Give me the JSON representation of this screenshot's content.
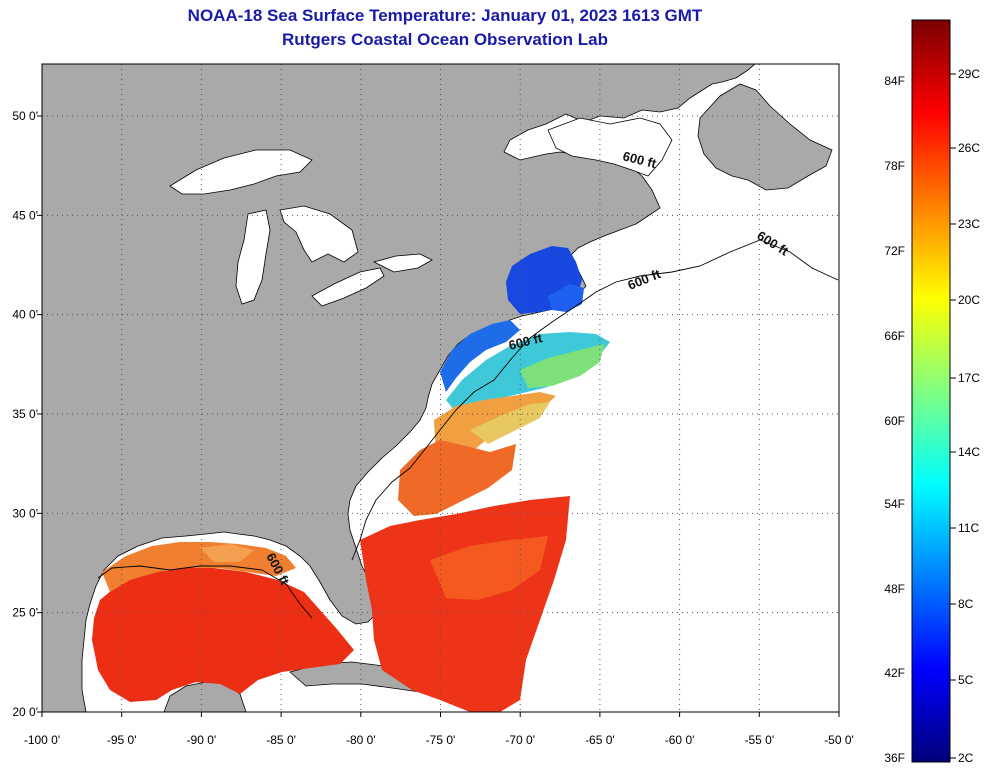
{
  "header": {
    "title": "NOAA-18 Sea Surface Temperature:  January 01, 2023 1613 GMT",
    "subtitle": "Rutgers Coastal Ocean Observation Lab"
  },
  "map": {
    "lon_range": [
      -100,
      -50
    ],
    "lat_range": [
      20,
      52
    ],
    "lon_ticks": [
      "-100 0'",
      "-95 0'",
      "-90 0'",
      "-85 0'",
      "-80 0'",
      "-75 0'",
      "-70 0'",
      "-65 0'",
      "-60 0'",
      "-55 0'",
      "-50 0'"
    ],
    "lat_ticks": [
      {
        "lat": 50,
        "label": "50 0'"
      },
      {
        "lat": 45,
        "label": "45 0'"
      },
      {
        "lat": 40,
        "label": "40 0'"
      },
      {
        "lat": 35,
        "label": "35 0'"
      },
      {
        "lat": 30,
        "label": "30 0'"
      },
      {
        "lat": 25,
        "label": "25 0'"
      },
      {
        "lat": 20,
        "label": "20 0'"
      }
    ],
    "isobath_labels": [
      "600 ft",
      "600 ft",
      "600 ft",
      "600 ft",
      "600 ft"
    ],
    "colors": {
      "land": "#a9a9a9",
      "nodata": "#ffffff",
      "coast": "#000000",
      "grid": "#555555"
    }
  },
  "colorbar": {
    "fahrenheit": [
      "84F",
      "78F",
      "72F",
      "66F",
      "60F",
      "54F",
      "48F",
      "42F",
      "36F"
    ],
    "celsius": [
      "29C",
      "26C",
      "23C",
      "20C",
      "17C",
      "14C",
      "11C",
      "8C",
      "5C",
      "2C"
    ],
    "stops": [
      "#00007a",
      "#0000ff",
      "#0080ff",
      "#00ffff",
      "#80ff80",
      "#ffff00",
      "#ff8000",
      "#ff0000",
      "#7a0000"
    ]
  }
}
